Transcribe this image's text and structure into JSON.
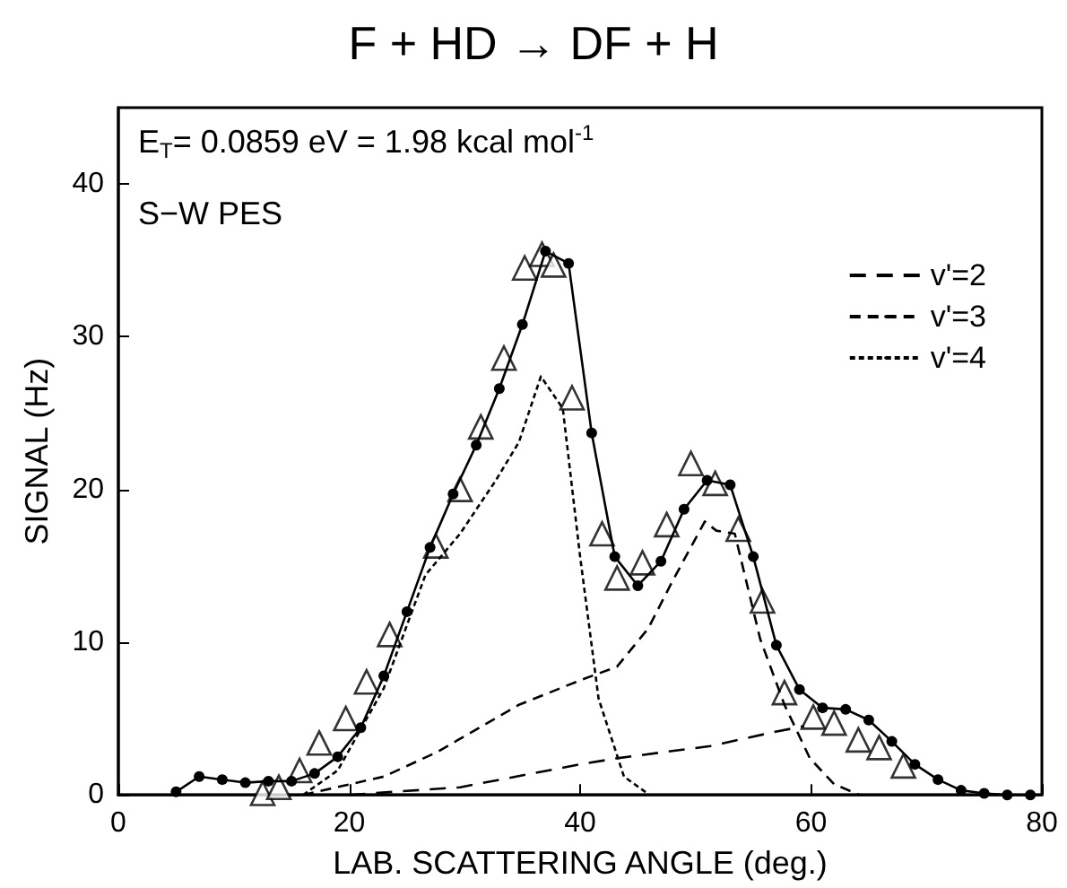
{
  "chart_data": {
    "type": "line",
    "title": "F + HD → DF + H",
    "xlabel": "LAB. SCATTERING ANGLE (deg.)",
    "ylabel": "SIGNAL (Hz)",
    "annotations": [
      "E$_{T}$= 0.0859 eV = 1.98 kcal mol$^{-1}$",
      "S−W PES"
    ],
    "xlim": [
      0,
      80
    ],
    "xticks": [
      0,
      20,
      40,
      60,
      80
    ],
    "ylim": [
      0,
      45
    ],
    "yticks": [
      0,
      10,
      20,
      30,
      40
    ],
    "grid": false,
    "legend": "top right",
    "series": [
      {
        "marker": "circle",
        "line_style": "solid",
        "color": "#000000",
        "x": [
          5,
          7,
          9,
          11,
          13,
          15,
          17,
          19,
          21,
          23,
          25,
          27,
          29,
          31,
          33,
          35,
          37,
          39,
          41,
          43,
          45,
          47,
          49,
          51,
          53,
          55,
          57,
          59,
          61,
          63,
          65,
          67,
          69,
          71,
          73,
          75,
          77,
          79
        ],
        "values": [
          0.2,
          1.2,
          1.0,
          0.8,
          0.9,
          0.9,
          1.4,
          2.5,
          4.4,
          7.8,
          12.0,
          16.2,
          19.7,
          22.9,
          26.6,
          30.8,
          35.6,
          34.8,
          23.7,
          15.6,
          13.7,
          15.3,
          18.7,
          20.6,
          20.3,
          15.6,
          9.8,
          6.9,
          5.7,
          5.6,
          4.9,
          3.5,
          2.0,
          1.0,
          0.3,
          0.1,
          0,
          0
        ]
      },
      {
        "type": "scatter",
        "marker": "triangle",
        "color": "#000000",
        "x": [
          12.5,
          13.9,
          15.7,
          17.4,
          19.7,
          21.5,
          23.5,
          27.5,
          29.6,
          31.4,
          33.4,
          35.2,
          36.7,
          37.7,
          39.3,
          41.9,
          43.2,
          45.4,
          47.5,
          49.6,
          51.7,
          53.7,
          55.8,
          57.7,
          60.2,
          62.0,
          64.1,
          65.9,
          68.0
        ],
        "values": [
          0.1,
          0.5,
          1.6,
          3.4,
          5.0,
          7.4,
          10.5,
          16.3,
          20.0,
          24.1,
          28.6,
          34.5,
          35.4,
          34.7,
          26.0,
          17.1,
          14.2,
          15.2,
          17.7,
          21.7,
          20.4,
          17.4,
          12.7,
          6.7,
          5.1,
          4.7,
          3.6,
          3.1,
          1.9
        ]
      },
      {
        "name": "v'=2",
        "marker": "none",
        "line_style": "dashed",
        "color": "#000000",
        "x": [
          20,
          29.6,
          40,
          43.2,
          51.3,
          56.7,
          59.4
        ],
        "values": [
          0,
          0.5,
          2.0,
          2.4,
          3.2,
          4.1,
          4.5
        ]
      },
      {
        "name": "v'=3",
        "marker": "none",
        "line_style": "dashed",
        "color": "#000000",
        "x": [
          16,
          23,
          27.6,
          34.7,
          40,
          43.2,
          45.9,
          48,
          50.8,
          51.8,
          53.4,
          55.6,
          57.7,
          59.9,
          62,
          64.2
        ],
        "values": [
          0,
          1.2,
          2.8,
          5.9,
          7.5,
          8.4,
          10.9,
          14,
          17.9,
          17.3,
          17.1,
          10.2,
          5.9,
          2.4,
          0.7,
          0
        ]
      },
      {
        "name": "v'=4",
        "marker": "none",
        "line_style": "dotted",
        "color": "#000000",
        "x": [
          16,
          19,
          23,
          26.6,
          29.6,
          32.7,
          34.7,
          36.6,
          38.5,
          40,
          41.6,
          43.8,
          46
        ],
        "values": [
          0,
          1.6,
          7,
          14.4,
          17.1,
          20.6,
          23.1,
          27.4,
          25.3,
          15.6,
          6.3,
          1.2,
          0
        ]
      }
    ]
  }
}
